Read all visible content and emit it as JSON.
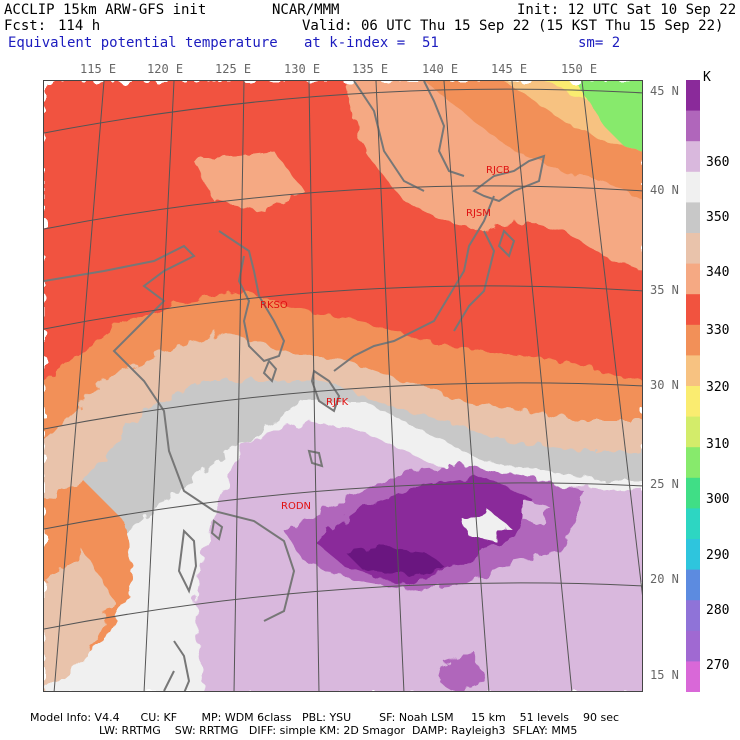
{
  "header": {
    "title": "ACCLIP 15km ARW-GFS init",
    "center": "NCAR/MMM",
    "init": "Init: 12 UTC Sat 10 Sep 22",
    "fcst_label": "Fcst:",
    "fcst_value": "114 h",
    "valid": "Valid: 06 UTC Thu 15 Sep 22 (15 KST Thu 15 Sep 22)",
    "field": "Equivalent potential temperature",
    "level": "at k-index =  51",
    "smoothing": "sm= 2"
  },
  "lon_labels": [
    "115 E",
    "120 E",
    "125 E",
    "130 E",
    "135 E",
    "140 E",
    "145 E",
    "150 E"
  ],
  "lat_labels": [
    "45 N",
    "40 N",
    "35 N",
    "30 N",
    "25 N",
    "20 N",
    "15 N"
  ],
  "colorbar": {
    "unit": "K",
    "ticks": [
      "360",
      "350",
      "340",
      "330",
      "320",
      "310",
      "300",
      "290",
      "280",
      "270"
    ],
    "colors": [
      "#8a2a9a",
      "#b066bb",
      "#d9b8dd",
      "#f0f0f0",
      "#c8c8c8",
      "#e9c3ab",
      "#f5a983",
      "#f1533f",
      "#f29058",
      "#f7c281",
      "#faec70",
      "#d3ec6a",
      "#87ea6c",
      "#40de86",
      "#2dd6c2",
      "#2ec5dd",
      "#5c8be0",
      "#8f73d8",
      "#a069d2",
      "#d968d8"
    ]
  },
  "stations": [
    "RJCB",
    "RJSM",
    "RKSO",
    "RJFK",
    "RODN"
  ],
  "footer": {
    "line1": "Model Info: V4.4      CU: KF       MP: WDM 6class   PBL: YSU        SF: Noah LSM     15 km    51 levels    90 sec",
    "line2": "LW: RRTMG    SW: RRTMG   DIFF: simple KM: 2D Smagor  DAMP: Rayleigh3  SFLAY: MM5"
  }
}
